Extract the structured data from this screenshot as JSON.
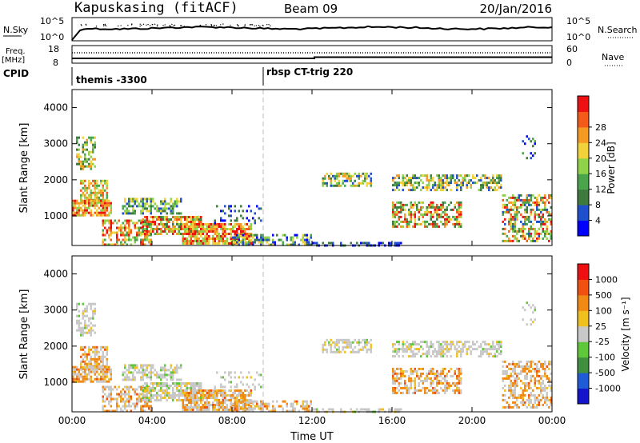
{
  "header": {
    "radar": "Kapuskasing (fitACF)",
    "beam": "Beam 09",
    "date": "20/Jan/2016"
  },
  "panels": {
    "nsky": {
      "left_label": "N.Sky",
      "left_ticks": [
        "10^5",
        "10^0"
      ],
      "right_ticks": [
        "10^5",
        "10^0"
      ],
      "right_label": "N.Search"
    },
    "freq": {
      "left_label_1": "Freq.",
      "left_label_2": "[MHz]",
      "left_ticks": [
        "18",
        "8"
      ],
      "right_ticks": [
        "60",
        "0"
      ],
      "right_label": "Nave"
    },
    "cpid": {
      "label": "CPID",
      "entries": [
        "themis -3300",
        "rbsp CT-trig 220"
      ]
    }
  },
  "colors": {
    "power": [
      "#0000ff",
      "#1f4fcc",
      "#3e7a3e",
      "#49a44c",
      "#8fd34a",
      "#f2d23a",
      "#f59a23",
      "#f45a1a",
      "#ee1111"
    ],
    "velocity": [
      "#1414cc",
      "#1f5bd6",
      "#3f8f3f",
      "#5fc83a",
      "#c8c8c8",
      "#f0c020",
      "#f08a14",
      "#f05010",
      "#ee1010"
    ]
  },
  "chart_data": [
    {
      "type": "heatmap",
      "quantity": "power",
      "xlabel": "",
      "ylabel": "Slant Range [km]",
      "x_ticks": [
        "00:00",
        "04:00",
        "08:00",
        "12:00",
        "16:00",
        "20:00",
        "00:00"
      ],
      "y_ticks": [
        "1000",
        "2000",
        "3000",
        "4000"
      ],
      "ylim": [
        180,
        4500
      ],
      "xlim_hours": [
        0,
        24
      ],
      "colorbar_label": "Power [dB]",
      "colorbar_ticks": [
        "4",
        "8",
        "12",
        "16",
        "20",
        "24",
        "28"
      ],
      "colorbar_range": [
        0,
        30
      ]
    },
    {
      "type": "heatmap",
      "quantity": "velocity",
      "xlabel": "Time UT",
      "ylabel": "Slant Range [km]",
      "x_ticks": [
        "00:00",
        "04:00",
        "08:00",
        "12:00",
        "16:00",
        "20:00",
        "00:00"
      ],
      "y_ticks": [
        "1000",
        "2000",
        "3000",
        "4000"
      ],
      "ylim": [
        180,
        4500
      ],
      "xlim_hours": [
        0,
        24
      ],
      "colorbar_label": "Velocity [m s⁻¹]",
      "colorbar_ticks": [
        "1000",
        "500",
        "100",
        "25",
        "-25",
        "-100",
        "-500",
        "-1000"
      ]
    }
  ]
}
